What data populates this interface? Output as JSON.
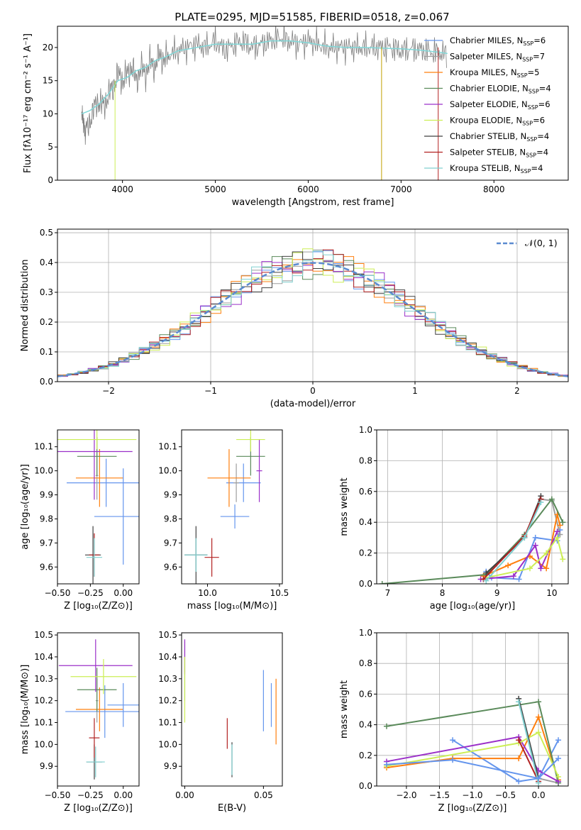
{
  "figure": {
    "title": "PLATE=0295, MJD=51585, FIBERID=0518, z=0.067"
  },
  "colors": [
    "#6495ed",
    "#9e9e9e",
    "#ff7f0e",
    "#5a8a5a",
    "#9b30c9",
    "#ccee55",
    "#404040",
    "#b22222",
    "#80d0d0"
  ],
  "chart_data": [
    {
      "type": "line",
      "id": "spectrum",
      "xlabel": "wavelength [Angstrom, rest frame]",
      "ylabel": "Flux [fλ10⁻¹⁷ erg cm⁻² s⁻¹ A⁻¹]",
      "xlim": [
        3300,
        8800
      ],
      "ylim": [
        0,
        23.2
      ],
      "xticks": [
        "4000",
        "5000",
        "6000",
        "7000",
        "8000"
      ],
      "yticks": [
        "0",
        "5",
        "10",
        "15",
        "20"
      ],
      "observed": {
        "color": "#808080",
        "x": [
          3560,
          3600,
          3650,
          3700,
          3750,
          3800,
          3850,
          3900,
          3950,
          4000,
          4050,
          4100,
          4150,
          4200,
          4250,
          4300,
          4350,
          4400,
          4450,
          4500,
          4600,
          4700,
          4800,
          4900,
          5000,
          5100,
          5200,
          5300,
          5400,
          5500,
          5600,
          5700,
          5800,
          5900,
          6000,
          6100,
          6200,
          6300,
          6400,
          6500,
          6600,
          6700,
          6800,
          6900,
          7000,
          7100,
          7200,
          7300,
          7400,
          7500
        ],
        "y": [
          10.5,
          7,
          9,
          11,
          12,
          11,
          13,
          14,
          16,
          15,
          16,
          17,
          15,
          17,
          16,
          18,
          17,
          19,
          18,
          19,
          19.5,
          20,
          20.5,
          20,
          21,
          19.5,
          20.5,
          21,
          20,
          20.5,
          21,
          21.5,
          21,
          20.5,
          21,
          20.5,
          20,
          20,
          20,
          20,
          20,
          20,
          20,
          20,
          19.5,
          19.8,
          19.6,
          19.4,
          19.2,
          19
        ]
      },
      "model": {
        "color": "#80d8d8",
        "x": [
          3560,
          3650,
          3750,
          3850,
          3950,
          4050,
          4150,
          4250,
          4350,
          4450,
          4600,
          4800,
          5000,
          5200,
          5400,
          5600,
          5800,
          6000,
          6200,
          6400,
          6600,
          6800,
          7000,
          7200,
          7400,
          7500
        ],
        "y": [
          10,
          10.5,
          11.5,
          13,
          15,
          15.5,
          16.5,
          17,
          18,
          18.5,
          19.5,
          20,
          20.5,
          20.5,
          20.5,
          21,
          21,
          20.7,
          20.2,
          20,
          20,
          19.9,
          19.8,
          19.6,
          19.3,
          19.1
        ]
      },
      "legend": [
        {
          "label": "Chabrier MILES, N",
          "sub": "SSP",
          "value": "=6"
        },
        {
          "label": "Salpeter MILES, N",
          "sub": "SSP",
          "value": "=7"
        },
        {
          "label": "Kroupa MILES, N",
          "sub": "SSP",
          "value": "=5"
        },
        {
          "label": "Chabrier ELODIE, N",
          "sub": "SSP",
          "value": "=4"
        },
        {
          "label": "Salpeter ELODIE, N",
          "sub": "SSP",
          "value": "=6"
        },
        {
          "label": "Kroupa ELODIE, N",
          "sub": "SSP",
          "value": "=6"
        },
        {
          "label": "Chabrier STELIB, N",
          "sub": "SSP",
          "value": "=4"
        },
        {
          "label": "Salpeter STELIB, N",
          "sub": "SSP",
          "value": "=4"
        },
        {
          "label": "Kroupa STELIB, N",
          "sub": "SSP",
          "value": "=4"
        }
      ],
      "legend_placement": "top-right"
    },
    {
      "type": "histogram",
      "id": "residuals",
      "xlabel": "(data-model)/error",
      "ylabel": "Normed distribution",
      "xlim": [
        -2.5,
        2.5
      ],
      "ylim": [
        0,
        0.512
      ],
      "xticks": [
        "−2",
        "−1",
        "0",
        "1",
        "2"
      ],
      "yticks": [
        "0.0",
        "0.1",
        "0.2",
        "0.3",
        "0.4",
        "0.5"
      ],
      "grid": true,
      "bin_width": 0.1,
      "gaussian_label": "𝒩(0, 1)",
      "legend_placement": "top-right"
    },
    {
      "type": "scatter",
      "id": "age-vs-Z",
      "xlabel": "Z [log₁₀(Z/Z⊙)]",
      "ylabel": "age  [log₁₀(age/yr)]",
      "xlim": [
        -0.5,
        0.12
      ],
      "ylim": [
        9.53,
        10.17
      ],
      "xticks": [
        "−0.50",
        "−0.25",
        "0.00"
      ],
      "yticks": [
        "9.6",
        "9.7",
        "9.8",
        "9.9",
        "10.0",
        "10.1"
      ],
      "points": [
        {
          "x": -0.13,
          "xerr": 0.3,
          "y": 9.95,
          "yerr": 0.1
        },
        {
          "x": -0.2,
          "xerr": 0.01,
          "y": 9.98,
          "yerr": 0.1
        },
        {
          "x": -0.18,
          "xerr": 0.18,
          "y": 9.97,
          "yerr": 0.12
        },
        {
          "x": -0.2,
          "xerr": 0.15,
          "y": 10.06,
          "yerr": 0.08
        },
        {
          "x": -0.22,
          "xerr": 0.29,
          "y": 10.08,
          "yerr": 0.2
        },
        {
          "x": -0.2,
          "xerr": 0.3,
          "y": 10.13,
          "yerr": 0.04
        },
        {
          "x": -0.23,
          "xerr": 0.06,
          "y": 9.65,
          "yerr": 0.12
        },
        {
          "x": -0.22,
          "xerr": 0.04,
          "y": 9.65,
          "yerr": 0.09
        },
        {
          "x": -0.22,
          "xerr": 0.06,
          "y": 9.64,
          "yerr": 0.08
        },
        {
          "x": 0.0,
          "xerr": 0.22,
          "y": 9.81,
          "yerr": 0.2
        }
      ]
    },
    {
      "type": "scatter",
      "id": "age-vs-mass",
      "xlabel": "mass [log₁₀(M/M⊙)]",
      "ylabel": "",
      "xlim": [
        9.82,
        10.52
      ],
      "ylim": [
        9.53,
        10.17
      ],
      "xticks": [
        "10.0",
        "10.5"
      ],
      "yticks": [
        "9.6",
        "9.7",
        "9.8",
        "9.9",
        "10.0",
        "10.1"
      ],
      "points": [
        {
          "x": 10.25,
          "xerr": 0.12,
          "y": 9.95,
          "yerr": 0.08
        },
        {
          "x": 10.2,
          "xerr": 0.02,
          "y": 9.95,
          "yerr": 0.08
        },
        {
          "x": 10.15,
          "xerr": 0.15,
          "y": 9.97,
          "yerr": 0.12
        },
        {
          "x": 10.3,
          "xerr": 0.1,
          "y": 10.06,
          "yerr": 0.08
        },
        {
          "x": 10.36,
          "xerr": 0.02,
          "y": 10.0,
          "yerr": 0.13
        },
        {
          "x": 10.3,
          "xerr": 0.1,
          "y": 10.13,
          "yerr": 0.05
        },
        {
          "x": 9.92,
          "xerr": 0.08,
          "y": 9.65,
          "yerr": 0.12
        },
        {
          "x": 10.03,
          "xerr": 0.05,
          "y": 9.64,
          "yerr": 0.08
        },
        {
          "x": 9.92,
          "xerr": 0.08,
          "y": 9.65,
          "yerr": 0.07
        },
        {
          "x": 10.19,
          "xerr": 0.1,
          "y": 9.81,
          "yerr": 0.05
        }
      ]
    },
    {
      "type": "line",
      "id": "mass-weight-vs-age",
      "xlabel": "age  [log₁₀(age/yr)]",
      "ylabel": "mass weight",
      "xlim": [
        6.8,
        10.3
      ],
      "ylim": [
        0,
        1.0
      ],
      "xticks": [
        "7",
        "8",
        "9",
        "10"
      ],
      "yticks": [
        "0.0",
        "0.2",
        "0.4",
        "0.6",
        "0.8",
        "1.0"
      ],
      "grid": true,
      "series": [
        {
          "x": [
            8.8,
            8.9,
            9.4,
            9.7,
            10.1,
            10.15
          ],
          "y": [
            0.08,
            0.04,
            0.03,
            0.3,
            0.28,
            0.35
          ]
        },
        {
          "x": [
            8.8,
            9.5,
            9.8,
            10.0,
            10.15
          ],
          "y": [
            0.06,
            0.3,
            0.55,
            0.54,
            0.32
          ]
        },
        {
          "x": [
            8.75,
            9.2,
            9.6,
            9.9,
            10.1,
            10.15
          ],
          "y": [
            0.05,
            0.12,
            0.18,
            0.1,
            0.45,
            0.38
          ]
        },
        {
          "x": [
            6.9,
            8.8,
            9.5,
            10.0,
            10.2
          ],
          "y": [
            0.0,
            0.06,
            0.32,
            0.55,
            0.4
          ]
        },
        {
          "x": [
            8.7,
            9.3,
            9.7,
            9.8,
            10.1
          ],
          "y": [
            0.03,
            0.05,
            0.25,
            0.1,
            0.34
          ]
        },
        {
          "x": [
            8.8,
            9.6,
            9.9,
            10.1,
            10.2
          ],
          "y": [
            0.04,
            0.1,
            0.2,
            0.3,
            0.16
          ]
        },
        {
          "x": [
            8.8,
            9.5,
            9.8
          ],
          "y": [
            0.07,
            0.3,
            0.57
          ]
        },
        {
          "x": [
            8.75,
            9.5,
            9.8
          ],
          "y": [
            0.03,
            0.31,
            0.55
          ]
        },
        {
          "x": [
            8.8,
            9.5,
            9.8
          ],
          "y": [
            0.02,
            0.3,
            0.53
          ]
        }
      ]
    },
    {
      "type": "scatter",
      "id": "mass-vs-Z",
      "xlabel": "Z [log₁₀(Z/Z⊙)]",
      "ylabel": "mass [log₁₀(M/M⊙)]",
      "xlim": [
        -0.5,
        0.12
      ],
      "ylim": [
        9.81,
        10.51
      ],
      "xticks": [
        "−0.50",
        "−0.25",
        "0.00"
      ],
      "yticks": [
        "9.9",
        "10.0",
        "10.1",
        "10.2",
        "10.3",
        "10.4",
        "10.5"
      ],
      "points": [
        {
          "x": -0.14,
          "xerr": 0.3,
          "y": 10.15,
          "yerr": 0.12
        },
        {
          "x": -0.2,
          "xerr": 0.01,
          "y": 10.2,
          "yerr": 0.1
        },
        {
          "x": -0.18,
          "xerr": 0.18,
          "y": 10.16,
          "yerr": 0.1
        },
        {
          "x": -0.2,
          "xerr": 0.15,
          "y": 10.25,
          "yerr": 0.1
        },
        {
          "x": -0.21,
          "xerr": 0.28,
          "y": 10.36,
          "yerr": 0.12
        },
        {
          "x": -0.15,
          "xerr": 0.25,
          "y": 10.31,
          "yerr": 0.08
        },
        {
          "x": -0.22,
          "xerr": 0.06,
          "y": 9.92,
          "yerr": 0.08
        },
        {
          "x": -0.22,
          "xerr": 0.04,
          "y": 10.03,
          "yerr": 0.09
        },
        {
          "x": -0.21,
          "xerr": 0.07,
          "y": 9.92,
          "yerr": 0.07
        },
        {
          "x": 0.0,
          "xerr": 0.12,
          "y": 10.18,
          "yerr": 0.1
        }
      ]
    },
    {
      "type": "scatter",
      "id": "mass-vs-ebv",
      "xlabel": "E(B-V)",
      "ylabel": "",
      "xlim": [
        -0.002,
        0.062
      ],
      "ylim": [
        9.81,
        10.51
      ],
      "xticks": [
        "0.00",
        "0.05"
      ],
      "yticks": [
        "9.9",
        "10.0",
        "10.1",
        "10.2",
        "10.3",
        "10.4",
        "10.5"
      ],
      "points": [
        {
          "x": 0.05,
          "y": 10.2,
          "yerr": 0.14
        },
        {
          "x": 0.0,
          "y": 10.4,
          "yerr": 0.07
        },
        {
          "x": 0.058,
          "y": 10.15,
          "yerr": 0.15
        },
        {
          "x": 0.0,
          "y": 10.3,
          "yerr": 0.1
        },
        {
          "x": 0.0,
          "y": 10.4,
          "yerr": 0.08
        },
        {
          "x": 0.0,
          "y": 10.25,
          "yerr": 0.15
        },
        {
          "x": 0.03,
          "y": 9.93,
          "yerr": 0.08
        },
        {
          "x": 0.027,
          "y": 10.05,
          "yerr": 0.07
        },
        {
          "x": 0.03,
          "y": 9.93,
          "yerr": 0.07
        },
        {
          "x": 0.055,
          "y": 10.18,
          "yerr": 0.1
        }
      ]
    },
    {
      "type": "line",
      "id": "mass-weight-vs-Z",
      "xlabel": "Z [log₁₀(Z/Z⊙)]",
      "ylabel": "mass weight",
      "xlim": [
        -2.45,
        0.45
      ],
      "ylim": [
        0,
        1.0
      ],
      "xticks": [
        "−2.0",
        "−1.5",
        "−1.0",
        "−0.5",
        "0.0"
      ],
      "yticks": [
        "0.0",
        "0.2",
        "0.4",
        "0.6",
        "0.8",
        "1.0"
      ],
      "grid": true,
      "series": [
        {
          "x": [
            -1.3,
            -0.3,
            0.0,
            0.3
          ],
          "y": [
            0.3,
            0.03,
            0.05,
            0.3
          ]
        },
        {
          "x": [
            -0.3,
            0.0,
            0.3
          ],
          "y": [
            0.55,
            0.05,
            0.02
          ]
        },
        {
          "x": [
            -2.3,
            -1.3,
            -0.3,
            0.0,
            0.3
          ],
          "y": [
            0.12,
            0.18,
            0.18,
            0.45,
            0.04
          ]
        },
        {
          "x": [
            -2.3,
            0.0,
            0.3
          ],
          "y": [
            0.39,
            0.55,
            0.02
          ]
        },
        {
          "x": [
            -2.3,
            -0.3,
            0.0,
            0.3
          ],
          "y": [
            0.16,
            0.32,
            0.1,
            0.03
          ]
        },
        {
          "x": [
            -2.3,
            -0.3,
            0.0,
            0.3
          ],
          "y": [
            0.13,
            0.28,
            0.35,
            0.06
          ]
        },
        {
          "x": [
            -0.3,
            0.0
          ],
          "y": [
            0.57,
            0.05
          ]
        },
        {
          "x": [
            -0.3,
            0.0
          ],
          "y": [
            0.3,
            0.03
          ]
        },
        {
          "x": [
            -0.3,
            0.0
          ],
          "y": [
            0.55,
            0.02
          ]
        },
        {
          "x": [
            -2.3,
            -1.3,
            0.0,
            0.3
          ],
          "y": [
            0.14,
            0.17,
            0.05,
            0.18
          ]
        }
      ]
    }
  ]
}
